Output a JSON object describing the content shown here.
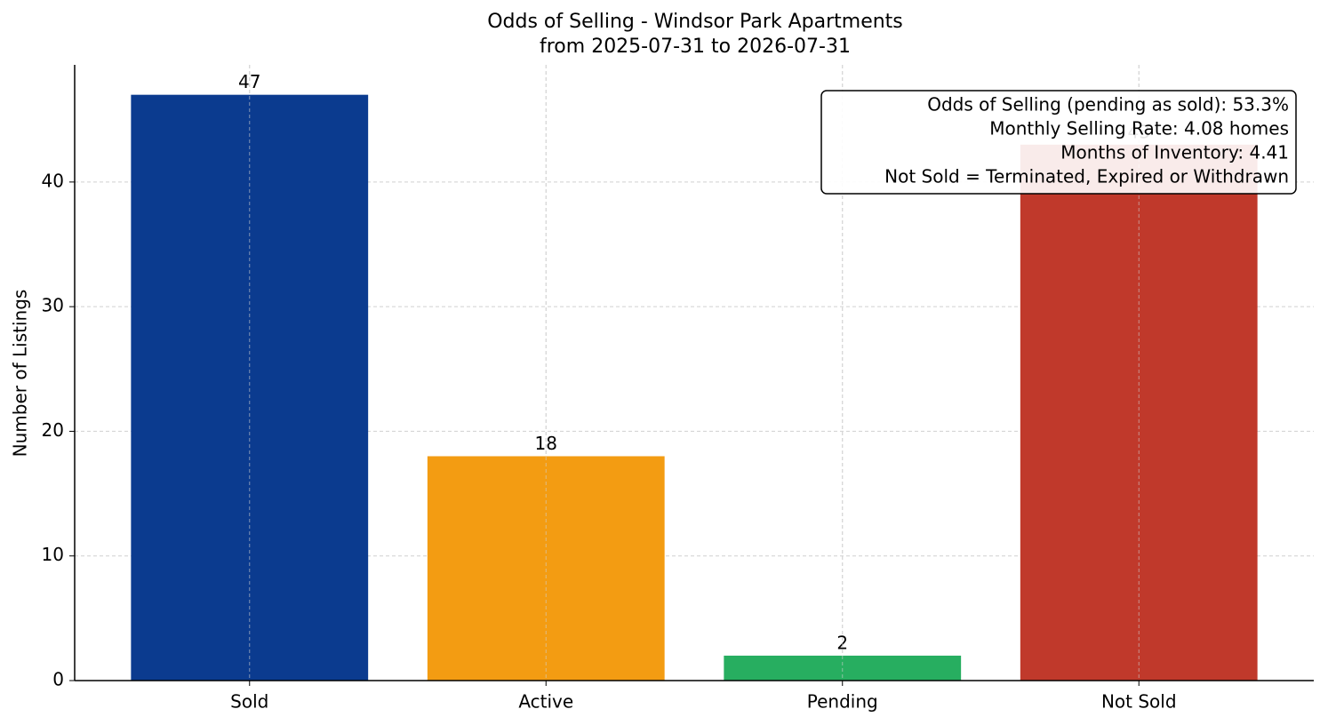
{
  "chart_data": {
    "type": "bar",
    "title": "Odds of Selling - Windsor Park Apartments",
    "subtitle": "from 2025-07-31 to 2026-07-31",
    "y_label": "Number of Listings",
    "categories": [
      "Sold",
      "Active",
      "Pending",
      "Not Sold"
    ],
    "values": [
      47,
      18,
      2,
      43
    ],
    "colors": [
      "#0b3b8f",
      "#f39c12",
      "#27ae60",
      "#c0392b"
    ],
    "ylim": [
      0,
      49.4
    ],
    "yticks": [
      0,
      10,
      20,
      30,
      40
    ],
    "grid": true,
    "annotation": [
      "Odds of Selling (pending as sold): 53.3%",
      "Monthly Selling Rate: 4.08 homes",
      "Months of Inventory: 4.41",
      "Not Sold = Terminated, Expired or Withdrawn"
    ]
  }
}
